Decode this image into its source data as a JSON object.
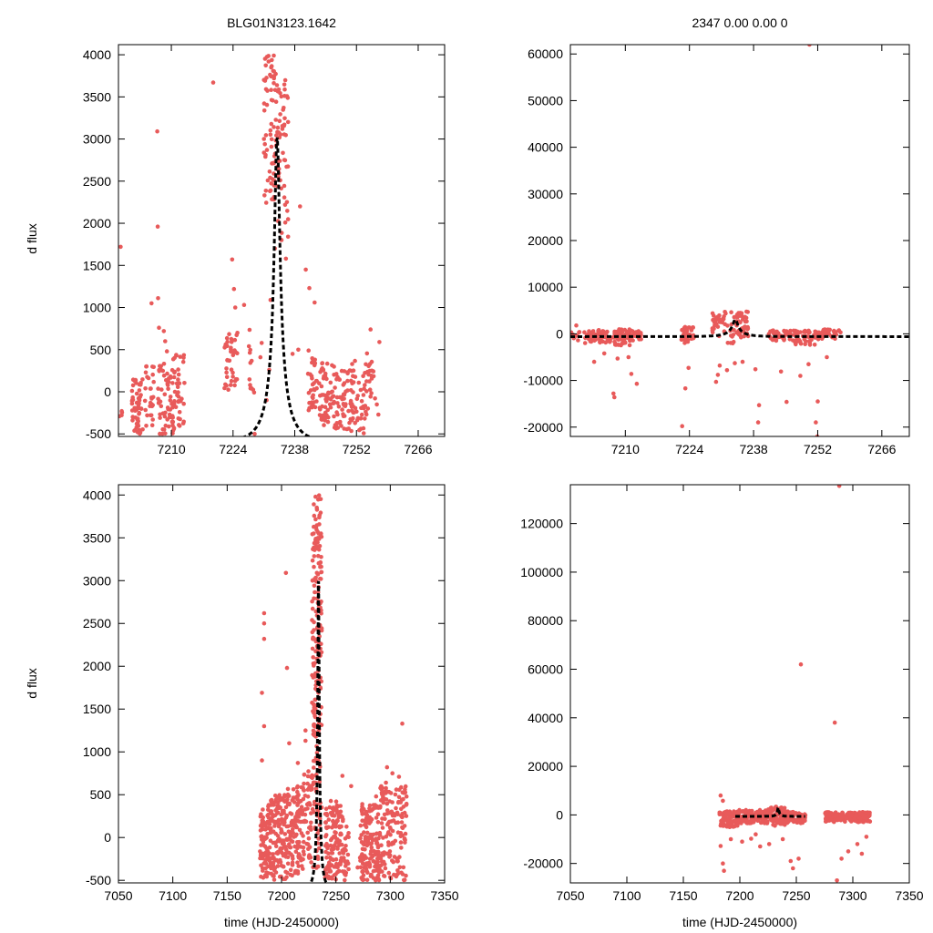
{
  "colors": {
    "points": "#e85a5a",
    "model": "#000000"
  },
  "ylabel": "d flux",
  "xlabel": "time (HJD-2450000)",
  "chart_data": [
    {
      "type": "scatter",
      "id": "top-left",
      "title": "BLG01N3123.1642",
      "xlim": [
        7198,
        7272
      ],
      "ylim": [
        -530,
        4120
      ],
      "xticks": [
        7210,
        7224,
        7238,
        7252,
        7266
      ],
      "yticks": [
        -500,
        0,
        500,
        1000,
        1500,
        2000,
        2500,
        3000,
        3500,
        4000
      ],
      "model": {
        "t0": 7234,
        "tE": 4.9,
        "u0": 0.12,
        "fs": 260,
        "base": -600,
        "range": [
          7198,
          7272
        ]
      },
      "clusters": [
        {
          "t": [
            7198,
            7199
          ],
          "y": [
            -350,
            0
          ],
          "n": 4
        },
        {
          "t": [
            7201,
            7203.5
          ],
          "y": [
            -500,
            150
          ],
          "n": 55
        },
        {
          "t": [
            7204,
            7206
          ],
          "y": [
            -500,
            350
          ],
          "n": 28
        },
        {
          "t": [
            7207,
            7210.5
          ],
          "y": [
            -500,
            400
          ],
          "n": 60
        },
        {
          "t": [
            7210.5,
            7213
          ],
          "y": [
            -450,
            450
          ],
          "n": 40
        },
        {
          "t": [
            7222,
            7225
          ],
          "y": [
            -100,
            700
          ],
          "n": 40
        },
        {
          "t": [
            7227.5,
            7229
          ],
          "y": [
            -100,
            800
          ],
          "n": 12
        },
        {
          "t": [
            7231,
            7234
          ],
          "y": [
            2200,
            4000
          ],
          "n": 70
        },
        {
          "t": [
            7234,
            7236.5
          ],
          "y": [
            1800,
            3700
          ],
          "n": 55
        },
        {
          "t": [
            7241,
            7243
          ],
          "y": [
            -300,
            500
          ],
          "n": 35
        },
        {
          "t": [
            7243.5,
            7247
          ],
          "y": [
            -400,
            350
          ],
          "n": 60
        },
        {
          "t": [
            7247,
            7250
          ],
          "y": [
            -450,
            250
          ],
          "n": 45
        },
        {
          "t": [
            7250,
            7254
          ],
          "y": [
            -500,
            400
          ],
          "n": 55
        },
        {
          "t": [
            7254,
            7257
          ],
          "y": [
            -300,
            500
          ],
          "n": 25
        }
      ],
      "outliers": [
        [
          7198.5,
          1720
        ],
        [
          7206.8,
          3090
        ],
        [
          7206.9,
          1960
        ],
        [
          7207.0,
          1110
        ],
        [
          7205.5,
          1050
        ],
        [
          7207.2,
          760
        ],
        [
          7208.3,
          720
        ],
        [
          7208.6,
          600
        ],
        [
          7209.0,
          480
        ],
        [
          7219.5,
          3670
        ],
        [
          7223.8,
          1570
        ],
        [
          7224.2,
          1220
        ],
        [
          7224.5,
          1000
        ],
        [
          7226.5,
          1030
        ],
        [
          7228.9,
          -500
        ],
        [
          7230.5,
          580
        ],
        [
          7230.2,
          410
        ],
        [
          7231.6,
          -100
        ],
        [
          7232.2,
          260
        ],
        [
          7232.5,
          1090
        ],
        [
          7233.5,
          1700
        ],
        [
          7236.0,
          1580
        ],
        [
          7237.5,
          450
        ],
        [
          7238.8,
          500
        ],
        [
          7239.2,
          2200
        ],
        [
          7240.5,
          1450
        ],
        [
          7241.3,
          1230
        ],
        [
          7242.5,
          1060
        ],
        [
          7255.2,
          740
        ],
        [
          7257.2,
          590
        ]
      ]
    },
    {
      "type": "scatter",
      "id": "top-right",
      "title": "2347  0.00  0.00  0",
      "xlim": [
        7198,
        7272
      ],
      "ylim": [
        -22000,
        62000
      ],
      "xticks": [
        7210,
        7224,
        7238,
        7252,
        7266
      ],
      "yticks": [
        -20000,
        -10000,
        0,
        10000,
        20000,
        30000,
        40000,
        50000,
        60000
      ],
      "model": {
        "t0": 7234,
        "tE": 4.9,
        "u0": 0.12,
        "fs": 260,
        "base": -600,
        "range": [
          7198,
          7272
        ]
      },
      "clusters": [
        {
          "t": [
            7198,
            7200
          ],
          "y": [
            -1500,
            700
          ],
          "n": 8
        },
        {
          "t": [
            7201,
            7207
          ],
          "y": [
            -2000,
            800
          ],
          "n": 55
        },
        {
          "t": [
            7207.5,
            7211
          ],
          "y": [
            -2500,
            1000
          ],
          "n": 55
        },
        {
          "t": [
            7211,
            7213.5
          ],
          "y": [
            -1500,
            700
          ],
          "n": 30
        },
        {
          "t": [
            7222,
            7225
          ],
          "y": [
            -2000,
            1500
          ],
          "n": 35
        },
        {
          "t": [
            7229,
            7234
          ],
          "y": [
            -3000,
            4800
          ],
          "n": 45
        },
        {
          "t": [
            7234,
            7237
          ],
          "y": [
            -1000,
            4800
          ],
          "n": 40
        },
        {
          "t": [
            7241,
            7247
          ],
          "y": [
            -1500,
            800
          ],
          "n": 45
        },
        {
          "t": [
            7247,
            7252
          ],
          "y": [
            -2500,
            800
          ],
          "n": 45
        },
        {
          "t": [
            7252,
            7257
          ],
          "y": [
            -1200,
            1000
          ],
          "n": 40
        }
      ],
      "outliers": [
        [
          7199.3,
          1800
        ],
        [
          7203.2,
          -6000
        ],
        [
          7205.4,
          -4200
        ],
        [
          7207.4,
          -12800
        ],
        [
          7207.6,
          -13600
        ],
        [
          7208.3,
          -5300
        ],
        [
          7210.7,
          -5000
        ],
        [
          7211.3,
          -8600
        ],
        [
          7212.5,
          -10700
        ],
        [
          7222.4,
          -19800
        ],
        [
          7223.1,
          -11700
        ],
        [
          7223.8,
          -7300
        ],
        [
          7229.8,
          -10300
        ],
        [
          7230.2,
          -8800
        ],
        [
          7230.6,
          -6800
        ],
        [
          7232.2,
          -7800
        ],
        [
          7233.9,
          -6300
        ],
        [
          7235.6,
          -6000
        ],
        [
          7238.4,
          -7600
        ],
        [
          7239.2,
          -15300
        ],
        [
          7239.0,
          -19000
        ],
        [
          7244.0,
          -8100
        ],
        [
          7245.2,
          -14600
        ],
        [
          7248.2,
          -9000
        ],
        [
          7250.0,
          -6500
        ],
        [
          7251.6,
          -19000
        ],
        [
          7251.9,
          -22000
        ],
        [
          7252.0,
          -14500
        ],
        [
          7254.0,
          -5000
        ],
        [
          7250.2,
          62000
        ]
      ]
    },
    {
      "type": "scatter",
      "id": "bottom-left",
      "title": "",
      "xlim": [
        7050,
        7350
      ],
      "ylim": [
        -530,
        4120
      ],
      "xticks": [
        7050,
        7100,
        7150,
        7200,
        7250,
        7300,
        7350
      ],
      "yticks": [
        -500,
        0,
        500,
        1000,
        1500,
        2000,
        2500,
        3000,
        3500,
        4000
      ],
      "model": {
        "t0": 7234,
        "tE": 4.9,
        "u0": 0.12,
        "fs": 260,
        "base": -600,
        "range": [
          7190,
          7274
        ]
      },
      "clusters": [
        {
          "t": [
            7180,
            7190
          ],
          "y": [
            -500,
            400
          ],
          "n": 90
        },
        {
          "t": [
            7190,
            7205
          ],
          "y": [
            -500,
            500
          ],
          "n": 140
        },
        {
          "t": [
            7205,
            7220
          ],
          "y": [
            -450,
            600
          ],
          "n": 120
        },
        {
          "t": [
            7220,
            7228
          ],
          "y": [
            -300,
            800
          ],
          "n": 50
        },
        {
          "t": [
            7228,
            7237
          ],
          "y": [
            1200,
            4000
          ],
          "n": 170
        },
        {
          "t": [
            7228,
            7237
          ],
          "y": [
            -400,
            1200
          ],
          "n": 50
        },
        {
          "t": [
            7240,
            7255
          ],
          "y": [
            -500,
            450
          ],
          "n": 130
        },
        {
          "t": [
            7255,
            7262
          ],
          "y": [
            -500,
            250
          ],
          "n": 30
        },
        {
          "t": [
            7272,
            7290
          ],
          "y": [
            -500,
            400
          ],
          "n": 150
        },
        {
          "t": [
            7290,
            7315
          ],
          "y": [
            -500,
            600
          ],
          "n": 150
        }
      ],
      "outliers": [
        [
          7184,
          2620
        ],
        [
          7184,
          2500
        ],
        [
          7184,
          2320
        ],
        [
          7182,
          1690
        ],
        [
          7184,
          1300
        ],
        [
          7182,
          900
        ],
        [
          7204,
          3090
        ],
        [
          7205,
          1980
        ],
        [
          7207,
          1100
        ],
        [
          7215,
          870
        ],
        [
          7222,
          1130
        ],
        [
          7222,
          1250
        ],
        [
          7230,
          1450
        ],
        [
          7229,
          620
        ],
        [
          7256,
          720
        ],
        [
          7264,
          600
        ],
        [
          7297,
          820
        ],
        [
          7302,
          750
        ],
        [
          7296,
          640
        ],
        [
          7308,
          710
        ],
        [
          7311,
          1330
        ],
        [
          7287,
          480
        ],
        [
          7270,
          -350
        ]
      ]
    },
    {
      "type": "scatter",
      "id": "bottom-right",
      "title": "",
      "xlim": [
        7050,
        7350
      ],
      "ylim": [
        -28000,
        136000
      ],
      "xticks": [
        7050,
        7100,
        7150,
        7200,
        7250,
        7300,
        7350
      ],
      "yticks": [
        -20000,
        0,
        20000,
        40000,
        60000,
        80000,
        100000,
        120000
      ],
      "model": {
        "t0": 7234,
        "tE": 4.9,
        "u0": 0.12,
        "fs": 260,
        "base": -600,
        "range": [
          7196,
          7274
        ],
        "gaps": [
          [
            7258,
            7276
          ]
        ]
      },
      "clusters": [
        {
          "t": [
            7182,
            7198
          ],
          "y": [
            -5000,
            1500
          ],
          "n": 80
        },
        {
          "t": [
            7198,
            7225
          ],
          "y": [
            -3500,
            2000
          ],
          "n": 120
        },
        {
          "t": [
            7225,
            7240
          ],
          "y": [
            -4500,
            3500
          ],
          "n": 70
        },
        {
          "t": [
            7240,
            7258
          ],
          "y": [
            -3500,
            1500
          ],
          "n": 70
        },
        {
          "t": [
            7275,
            7316
          ],
          "y": [
            -3000,
            1200
          ],
          "n": 170
        }
      ],
      "outliers": [
        [
          7183,
          8000
        ],
        [
          7185,
          5800
        ],
        [
          7183,
          -12800
        ],
        [
          7185,
          -20000
        ],
        [
          7186,
          -23000
        ],
        [
          7192,
          -10000
        ],
        [
          7202,
          -11000
        ],
        [
          7210,
          -9800
        ],
        [
          7214,
          -8000
        ],
        [
          7218,
          -13000
        ],
        [
          7226,
          -12000
        ],
        [
          7238,
          -10000
        ],
        [
          7245,
          -19000
        ],
        [
          7247,
          -22000
        ],
        [
          7252,
          -18000
        ],
        [
          7254,
          62000
        ],
        [
          7284,
          38000
        ],
        [
          7288,
          135500
        ],
        [
          7286,
          -27000
        ],
        [
          7290,
          -18000
        ],
        [
          7296,
          -15000
        ],
        [
          7304,
          -12000
        ],
        [
          7308,
          -16000
        ],
        [
          7312,
          -9000
        ]
      ]
    }
  ]
}
